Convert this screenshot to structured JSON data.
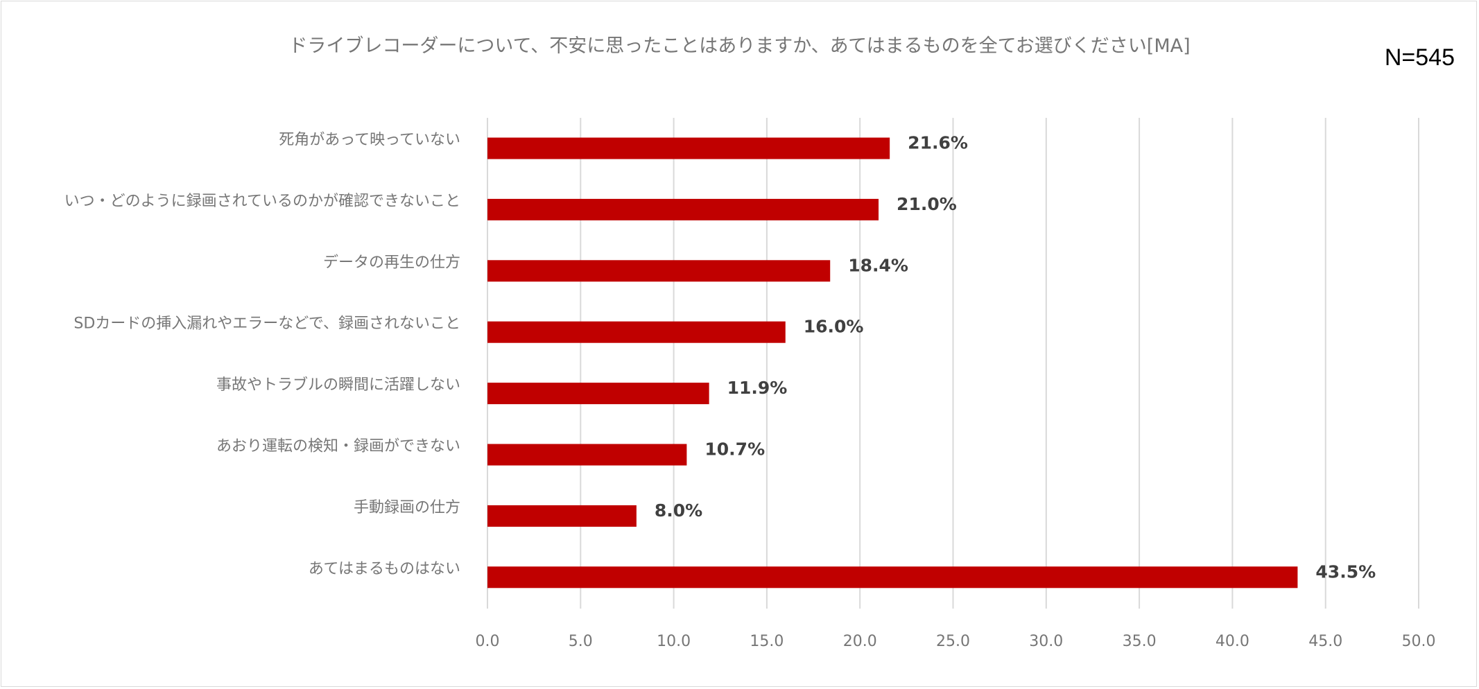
{
  "chart_data": {
    "type": "bar",
    "orientation": "horizontal",
    "title": "ドライブレコーダーについて、不安に思ったことはありますか、あてはまるものを全てお選びください[MA]",
    "sample_size": "N=545",
    "categories": [
      "死角があって映っていない",
      "いつ・どのように録画されているのかが確認できないこと",
      "データの再生の仕方",
      "SDカードの挿入漏れやエラーなどで、録画されないこと",
      "事故やトラブルの瞬間に活躍しない",
      "あおり運転の検知・録画ができない",
      "手動録画の仕方",
      "あてはまるものはない"
    ],
    "values": [
      21.6,
      21.0,
      18.4,
      16.0,
      11.9,
      10.7,
      8.0,
      43.5
    ],
    "data_labels": [
      "21.6%",
      "21.0%",
      "18.4%",
      "16.0%",
      "11.9%",
      "10.7%",
      "8.0%",
      "43.5%"
    ],
    "xlim": [
      0,
      50
    ],
    "xticks": [
      0,
      5,
      10,
      15,
      20,
      25,
      30,
      35,
      40,
      45,
      50
    ],
    "xtick_labels": [
      "0.0",
      "5.0",
      "10.0",
      "15.0",
      "20.0",
      "25.0",
      "30.0",
      "35.0",
      "40.0",
      "45.0",
      "50.0"
    ],
    "grid": true,
    "bar_color": "#c00000",
    "grid_color": "#d9d9d9"
  }
}
